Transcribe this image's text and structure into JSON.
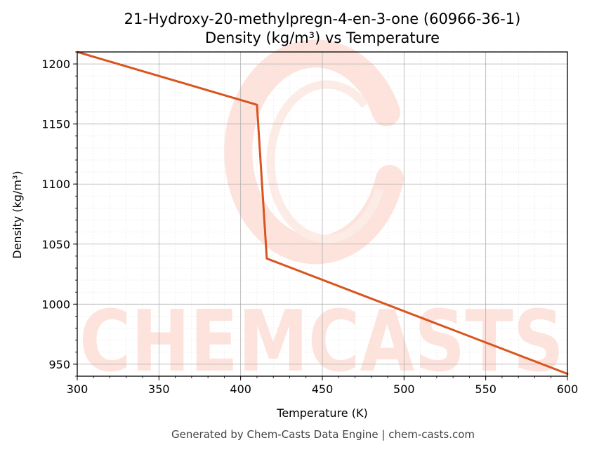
{
  "chart_data": {
    "type": "line",
    "title": "21-Hydroxy-20-methylpregn-4-en-3-one (60966-36-1)",
    "subtitle": "Density (kg/m³) vs Temperature",
    "xlabel": "Temperature (K)",
    "ylabel": "Density (kg/m³)",
    "xlim": [
      300,
      600
    ],
    "ylim": [
      940,
      1210
    ],
    "xticks": [
      300,
      350,
      400,
      450,
      500,
      550,
      600
    ],
    "yticks": [
      950,
      1000,
      1050,
      1100,
      1150,
      1200
    ],
    "grid": true,
    "series": [
      {
        "color": "#d9541e",
        "x": [
          300,
          410,
          416,
          600
        ],
        "y": [
          1210,
          1166,
          1038,
          942
        ]
      }
    ]
  },
  "watermark": {
    "text": "CHEMCASTS",
    "color": "#fde3dc"
  },
  "footer": "Generated by Chem-Casts Data Engine | chem-casts.com"
}
